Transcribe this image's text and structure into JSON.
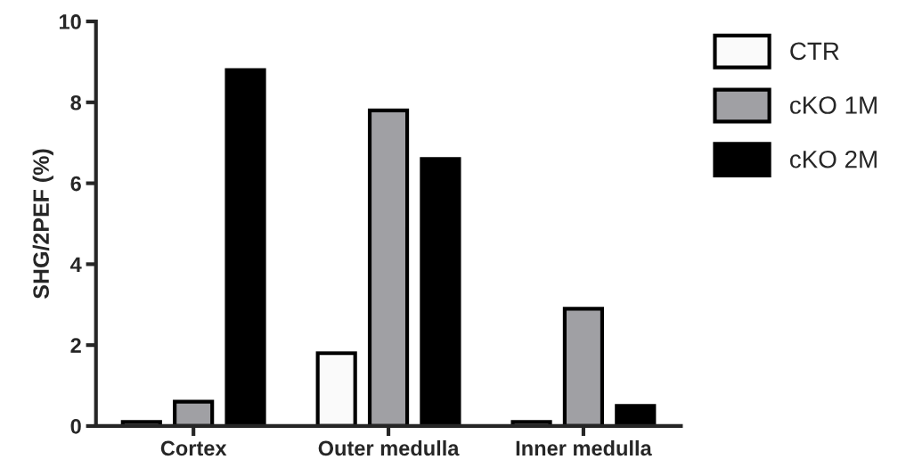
{
  "chart_data": {
    "type": "bar",
    "ylabel": "SHG/2PEF (%)",
    "categories": [
      "Cortex",
      "Outer medulla",
      "Inner medulla"
    ],
    "series": [
      {
        "name": "CTR",
        "color": "#fafafa",
        "values": [
          0.1,
          1.8,
          0.1
        ]
      },
      {
        "name": "cKO 1M",
        "color": "#a0a0a4",
        "values": [
          0.6,
          7.8,
          2.9
        ]
      },
      {
        "name": "cKO 2M",
        "color": "#000000",
        "values": [
          8.8,
          6.6,
          0.5
        ]
      }
    ],
    "ylim": [
      0,
      10
    ],
    "yticks": [
      0,
      2,
      4,
      6,
      8,
      10
    ],
    "grid": false,
    "legend": "top right"
  }
}
